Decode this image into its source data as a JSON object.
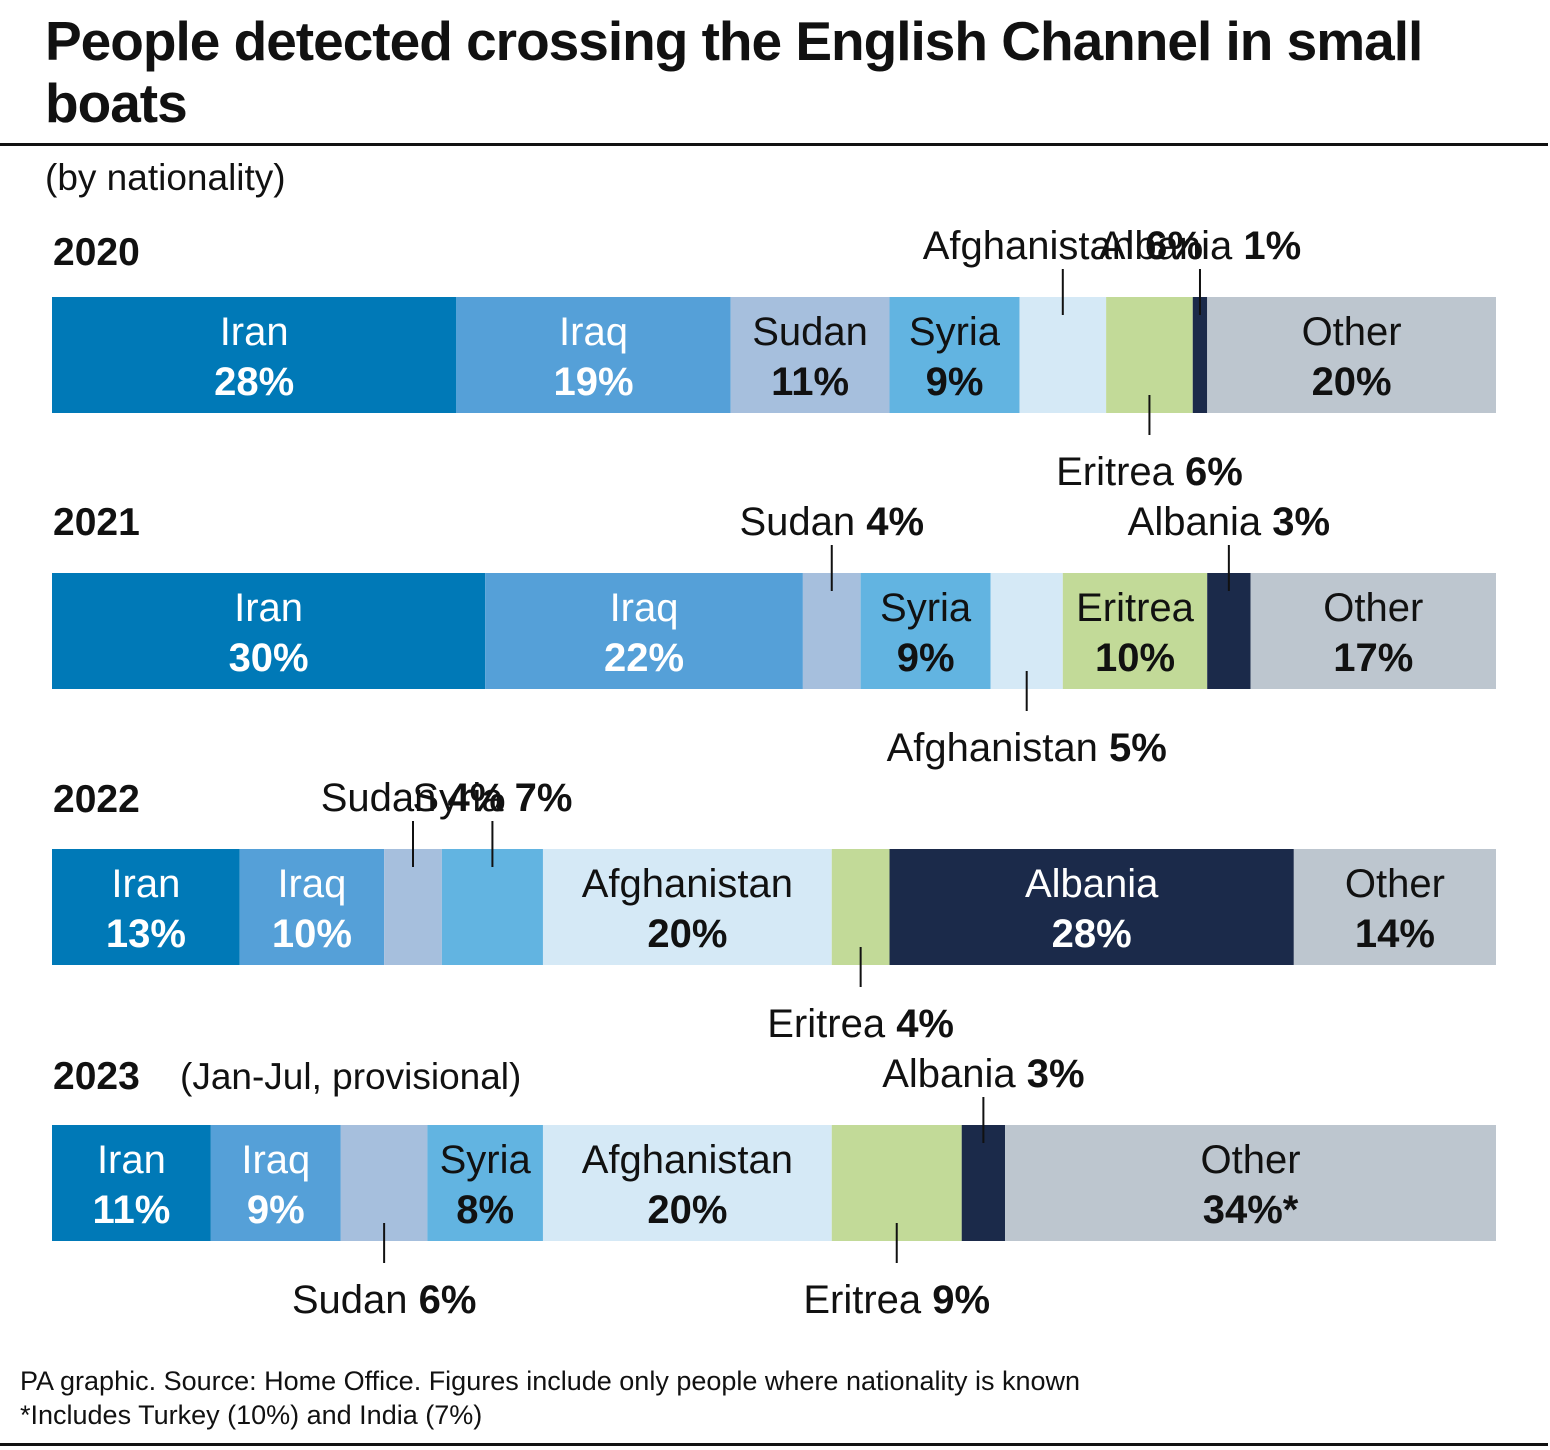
{
  "title": "People detected crossing the English Channel in small boats",
  "subtitle": "(by nationality)",
  "footer": {
    "source": "PA graphic. Source: Home Office. Figures include only people where nationality is known",
    "note": "*Includes Turkey (10%) and India (7%)"
  },
  "colors": {
    "Iran": "#0079b7",
    "Iraq": "#55a0d8",
    "Sudan": "#a6bfdd",
    "Syria": "#62b4e1",
    "Afghanistan": "#d5e9f6",
    "Eritrea": "#c2da98",
    "Albania": "#1b2a4a",
    "Other": "#bdc6cf"
  },
  "chart_data": {
    "type": "bar",
    "orientation": "horizontal-stacked-100",
    "categories": [
      "2020",
      "2021",
      "2022",
      "2023"
    ],
    "category_notes": [
      "",
      "",
      "",
      "(Jan-Jul, provisional)"
    ],
    "series": [
      {
        "name": "Iran",
        "values": [
          28,
          30,
          13,
          11
        ]
      },
      {
        "name": "Iraq",
        "values": [
          19,
          22,
          10,
          9
        ]
      },
      {
        "name": "Sudan",
        "values": [
          11,
          4,
          4,
          6
        ]
      },
      {
        "name": "Syria",
        "values": [
          9,
          9,
          7,
          8
        ]
      },
      {
        "name": "Afghanistan",
        "values": [
          6,
          5,
          20,
          20
        ]
      },
      {
        "name": "Eritrea",
        "values": [
          6,
          10,
          4,
          9
        ]
      },
      {
        "name": "Albania",
        "values": [
          1,
          3,
          28,
          3
        ]
      },
      {
        "name": "Other",
        "values": [
          20,
          17,
          14,
          34
        ]
      }
    ],
    "value_labels": [
      [
        "28%",
        "19%",
        "11%",
        "9%",
        "6%",
        "6%",
        "1%",
        "20%"
      ],
      [
        "30%",
        "22%",
        "4%",
        "9%",
        "5%",
        "10%",
        "3%",
        "17%"
      ],
      [
        "13%",
        "10%",
        "4%",
        "7%",
        "20%",
        "4%",
        "28%",
        "14%"
      ],
      [
        "11%",
        "9%",
        "6%",
        "8%",
        "20%",
        "9%",
        "3%",
        "34%*"
      ]
    ],
    "label_mode": [
      [
        "in",
        "in",
        "in",
        "in",
        "top",
        "bottom",
        "top",
        "in"
      ],
      [
        "in",
        "in",
        "top",
        "in",
        "bottom",
        "in",
        "top",
        "in"
      ],
      [
        "in",
        "in",
        "top",
        "top",
        "in",
        "bottom",
        "in",
        "in"
      ],
      [
        "in",
        "in",
        "bottom",
        "in",
        "in",
        "bottom",
        "top",
        "in"
      ]
    ],
    "xlim": [
      0,
      100
    ],
    "unit": "%"
  }
}
